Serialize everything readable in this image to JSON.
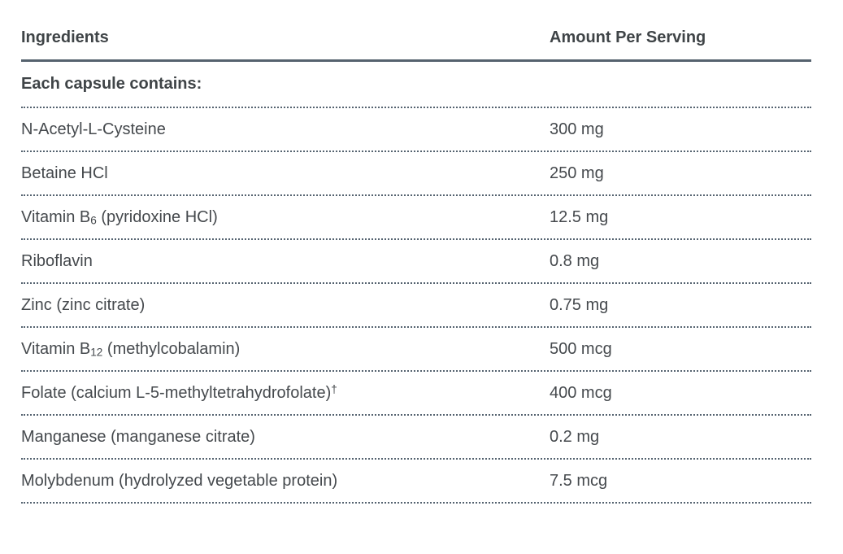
{
  "table": {
    "headers": {
      "ingredients": "Ingredients",
      "amount": "Amount Per Serving"
    },
    "section_label": "Each capsule contains:",
    "rows": [
      {
        "name_pre": "N-Acetyl-L-Cysteine",
        "name_sub": "",
        "name_post": "",
        "name_sup": "",
        "amount": "300 mg"
      },
      {
        "name_pre": "Betaine HCl",
        "name_sub": "",
        "name_post": "",
        "name_sup": "",
        "amount": "250 mg"
      },
      {
        "name_pre": "Vitamin B",
        "name_sub": "6",
        "name_post": " (pyridoxine HCl)",
        "name_sup": "",
        "amount": "12.5 mg"
      },
      {
        "name_pre": "Riboflavin",
        "name_sub": "",
        "name_post": "",
        "name_sup": "",
        "amount": "0.8 mg"
      },
      {
        "name_pre": "Zinc (zinc citrate)",
        "name_sub": "",
        "name_post": "",
        "name_sup": "",
        "amount": "0.75 mg"
      },
      {
        "name_pre": "Vitamin B",
        "name_sub": "12",
        "name_post": " (methylcobalamin)",
        "name_sup": "",
        "amount": "500 mcg"
      },
      {
        "name_pre": "Folate (calcium L-5-methyltetrahydrofolate)",
        "name_sub": "",
        "name_post": "",
        "name_sup": "†",
        "amount": "400 mcg"
      },
      {
        "name_pre": "Manganese (manganese citrate)",
        "name_sub": "",
        "name_post": "",
        "name_sup": "",
        "amount": "0.2 mg"
      },
      {
        "name_pre": "Molybdenum (hydrolyzed vegetable protein)",
        "name_sub": "",
        "name_post": "",
        "name_sup": "",
        "amount": "7.5 mcg"
      }
    ],
    "colors": {
      "header_rule": "#55626e",
      "dotted_rule": "#556370",
      "heading_text": "#3f4447",
      "body_text": "#45494d",
      "background": "#ffffff"
    }
  }
}
